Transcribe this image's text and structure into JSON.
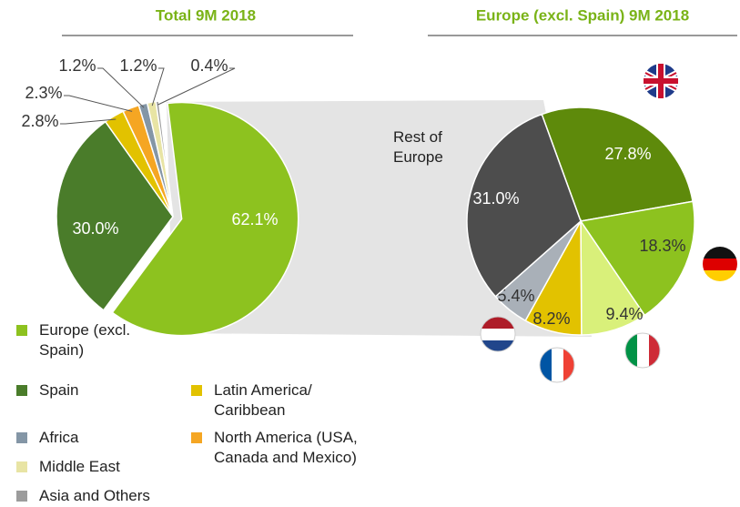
{
  "chart_data": [
    {
      "type": "pie",
      "title": "Total 9M 2018",
      "categories": [
        "Europe (excl. Spain)",
        "Spain",
        "Latin America/ Caribbean",
        "North America (USA, Canada and Mexico)",
        "Africa",
        "Middle East",
        "Asia and Others"
      ],
      "values": [
        62.1,
        30.0,
        2.8,
        2.3,
        1.2,
        1.2,
        0.4
      ],
      "value_labels": [
        "62.1%",
        "30.0%",
        "2.8%",
        "2.3%",
        "1.2%",
        "1.2%",
        "0.4%"
      ],
      "colors": [
        "#8dc21f",
        "#4a7c2a",
        "#e2c200",
        "#f5a623",
        "#8496a6",
        "#e8e4a4",
        "#9c9c9c"
      ],
      "legend": true
    },
    {
      "type": "pie",
      "title": "Europe (excl. Spain) 9M 2018",
      "categories": [
        null,
        null,
        null,
        null,
        null,
        "Rest of Europe"
      ],
      "values": [
        27.8,
        18.3,
        9.4,
        8.2,
        5.4,
        31.0
      ],
      "value_labels": [
        "27.8%",
        "18.3%",
        "9.4%",
        "8.2%",
        "5.4%",
        "31.0%"
      ],
      "colors": [
        "#5e8a0b",
        "#8dc21f",
        "#d9f07a",
        "#e2c200",
        "#a9b0b8",
        "#4d4d4d"
      ]
    }
  ]
}
